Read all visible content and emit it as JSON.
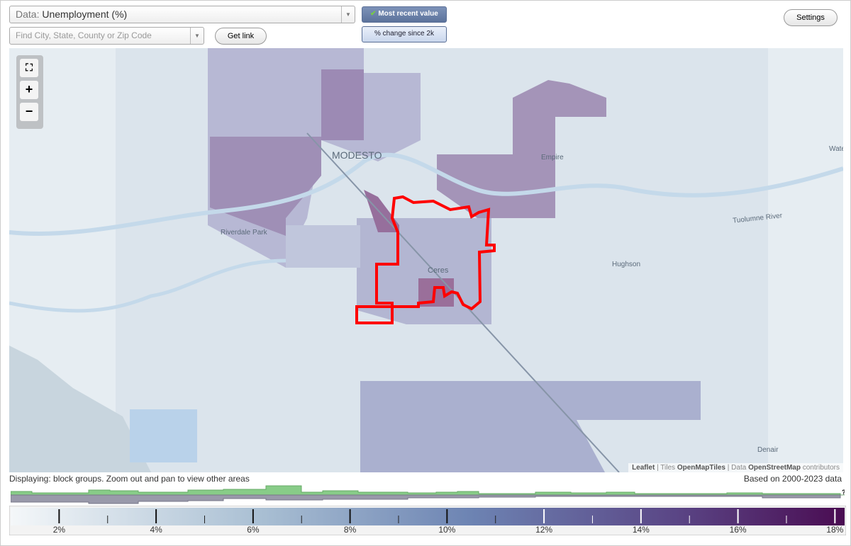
{
  "toolbar": {
    "data_prefix": "Data:",
    "data_value": "Unemployment (%)",
    "search_placeholder": "Find City, State, County or Zip Code",
    "get_link": "Get link",
    "most_recent": "Most recent value",
    "pct_change": "% change since 2k",
    "settings": "Settings"
  },
  "map": {
    "zoom_in": "+",
    "zoom_out": "−",
    "labels": [
      "MODESTO",
      "Empire",
      "Riverdale Park",
      "Ceres",
      "Hughson",
      "Tuolumne River",
      "Denair",
      "Wate"
    ],
    "attribution": {
      "leaflet": "Leaflet",
      "tiles_prefix": "Tiles",
      "tiles": "OpenMapTiles",
      "data_prefix": "Data",
      "data": "OpenStreetMap",
      "suffix": "contributors"
    }
  },
  "footer": {
    "displaying": "Displaying: block groups. Zoom out and pan to view other areas",
    "based_on": "Based on 2000-2023 data",
    "help": "?"
  },
  "legend": {
    "lim": [
      1,
      18.2
    ],
    "ticks": [
      {
        "value": 2,
        "label": "2%"
      },
      {
        "value": 4,
        "label": "4%"
      },
      {
        "value": 6,
        "label": "6%"
      },
      {
        "value": 8,
        "label": "8%"
      },
      {
        "value": 10,
        "label": "10%"
      },
      {
        "value": 12,
        "label": "12%"
      },
      {
        "value": 14,
        "label": "14%"
      },
      {
        "value": 16,
        "label": "16%"
      },
      {
        "value": 18,
        "label": "18%"
      }
    ],
    "minor_ticks": [
      3,
      5,
      7,
      9,
      11,
      13,
      15,
      17
    ]
  }
}
